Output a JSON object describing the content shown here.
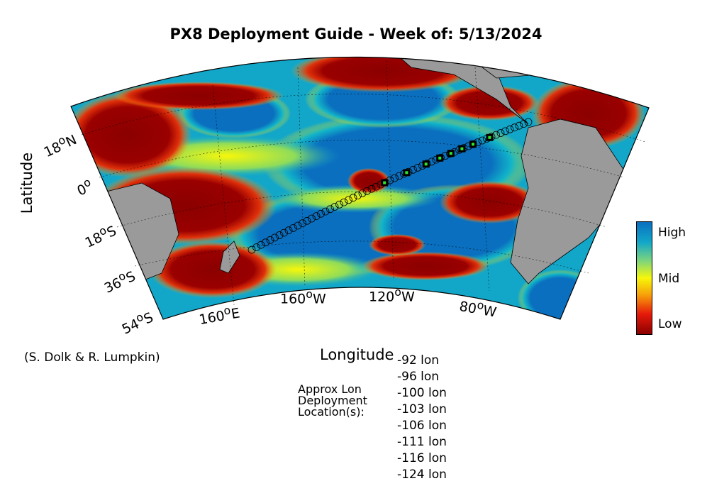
{
  "title": "PX8 Deployment Guide - Week of: 5/13/2024",
  "axes": {
    "xlabel": "Longitude",
    "ylabel": "Latitude",
    "lat_ticks": [
      {
        "base": "18",
        "sup": "o",
        "dir": "N"
      },
      {
        "base": "0",
        "sup": "o",
        "dir": ""
      },
      {
        "base": "18",
        "sup": "o",
        "dir": "S"
      },
      {
        "base": "36",
        "sup": "o",
        "dir": "S"
      },
      {
        "base": "54",
        "sup": "o",
        "dir": "S"
      }
    ],
    "lon_ticks": [
      {
        "base": "160",
        "sup": "o",
        "dir": "E"
      },
      {
        "base": "160",
        "sup": "o",
        "dir": "W"
      },
      {
        "base": "120",
        "sup": "o",
        "dir": "W"
      },
      {
        "base": "80",
        "sup": "o",
        "dir": "W"
      }
    ]
  },
  "colorbar": {
    "high": "High",
    "mid": "Mid",
    "low": "Low",
    "colors": [
      "#0a0a7a",
      "#0a6fbf",
      "#12a7c9",
      "#7fd67a",
      "#f7f70a",
      "#f7a00a",
      "#e61a0a",
      "#8b0000"
    ]
  },
  "credit": "(S. Dolk & R. Lumpkin)",
  "deployment": {
    "label_lines": [
      "Approx Lon",
      "Deployment",
      "Location(s):"
    ],
    "locations": [
      "-92 lon",
      "-96 lon",
      "-100 lon",
      "-103 lon",
      "-106 lon",
      "-111 lon",
      "-116 lon",
      "-124 lon"
    ]
  },
  "colors": {
    "land": "#9a9a9a",
    "high": "#0a6fbf",
    "low": "#8b0000",
    "deploy_marker": "#2ee82e"
  }
}
